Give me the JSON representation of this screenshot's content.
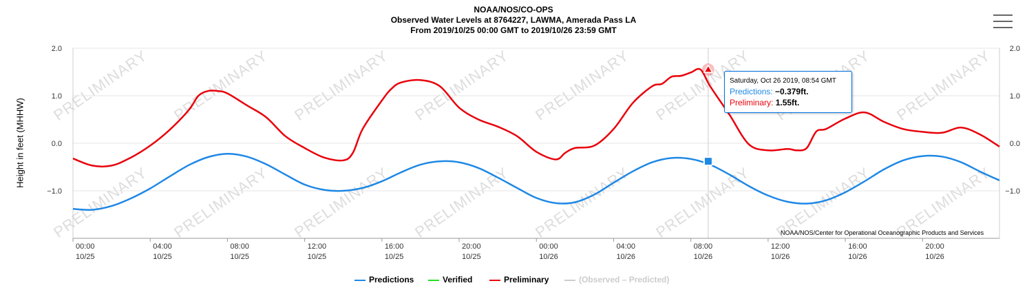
{
  "header": {
    "line1": "NOAA/NOS/CO-OPS",
    "line2": "Observed Water Levels at 8764227, LAWMA, Amerada Pass LA",
    "line3": "From 2019/10/25 00:00 GMT to 2019/10/26 23:59 GMT"
  },
  "menu_icon": "hamburger-menu-icon",
  "watermark_text": "PRELIMINARY",
  "credit": "NOAA/NOS/Center for Operational Oceanographic Products and Services",
  "tooltip": {
    "date": "Saturday, Oct 26 2019, 08:54 GMT",
    "predictions_label": "Predictions:",
    "predictions_value": "−0.379ft.",
    "preliminary_label": "Preliminary:",
    "preliminary_value": "1.55ft."
  },
  "legend": [
    {
      "label": "Predictions",
      "color": "#1e88e5"
    },
    {
      "label": "Verified",
      "color": "#22dd22"
    },
    {
      "label": "Preliminary",
      "color": "#e8000b"
    },
    {
      "label": "(Observed – Predicted)",
      "color": "#cccccc"
    }
  ],
  "chart_data": {
    "type": "line",
    "title": "Observed Water Levels at 8764227, LAWMA, Amerada Pass LA",
    "ylabel": "Height in feet (MHHW)",
    "xlabel": "",
    "ylim": [
      -2.0,
      2.0
    ],
    "xlim": [
      0,
      47.983
    ],
    "x_unit": "hours since 2019/10/25 00:00 GMT",
    "yticks": [
      "2.0",
      "1.0",
      "0.0",
      "−1.0"
    ],
    "ytick_values": [
      2.0,
      1.0,
      0.0,
      -1.0
    ],
    "xtick_hours": [
      0,
      4,
      8,
      12,
      16,
      20,
      24,
      28,
      32,
      36,
      40,
      44
    ],
    "xticks": [
      [
        "00:00",
        "10/25"
      ],
      [
        "04:00",
        "10/25"
      ],
      [
        "08:00",
        "10/25"
      ],
      [
        "12:00",
        "10/25"
      ],
      [
        "16:00",
        "10/25"
      ],
      [
        "20:00",
        "10/25"
      ],
      [
        "00:00",
        "10/26"
      ],
      [
        "04:00",
        "10/26"
      ],
      [
        "08:00",
        "10/26"
      ],
      [
        "12:00",
        "10/26"
      ],
      [
        "16:00",
        "10/26"
      ],
      [
        "20:00",
        "10/26"
      ]
    ],
    "grid": "horizontal",
    "legend_position": "bottom",
    "series": [
      {
        "name": "Predictions",
        "color": "#1e88e5",
        "x": [
          0,
          1,
          2,
          3,
          4,
          5,
          6,
          7,
          8,
          9,
          10,
          11,
          12,
          13,
          14,
          15,
          16,
          17,
          18,
          19,
          20,
          21,
          22,
          23,
          24,
          25,
          26,
          27,
          28,
          29,
          30,
          31,
          32,
          33,
          34,
          35,
          36,
          37,
          38,
          39,
          40,
          41,
          42,
          43,
          44,
          45,
          46,
          47,
          47.98
        ],
        "y": [
          -1.38,
          -1.4,
          -1.32,
          -1.16,
          -0.95,
          -0.7,
          -0.46,
          -0.29,
          -0.22,
          -0.28,
          -0.44,
          -0.66,
          -0.87,
          -0.98,
          -1.0,
          -0.94,
          -0.8,
          -0.61,
          -0.45,
          -0.38,
          -0.4,
          -0.52,
          -0.72,
          -0.94,
          -1.15,
          -1.26,
          -1.24,
          -1.08,
          -0.83,
          -0.59,
          -0.4,
          -0.31,
          -0.33,
          -0.45,
          -0.66,
          -0.9,
          -1.1,
          -1.23,
          -1.27,
          -1.2,
          -1.03,
          -0.8,
          -0.55,
          -0.36,
          -0.27,
          -0.28,
          -0.4,
          -0.6,
          -0.78
        ]
      },
      {
        "name": "Verified",
        "color": "#22dd22",
        "x": [],
        "y": []
      },
      {
        "name": "Preliminary",
        "color": "#e8000b",
        "x": [
          0,
          1,
          2,
          3,
          4,
          5,
          6,
          6.5,
          7,
          7.5,
          8,
          9,
          10,
          11,
          12,
          13,
          14,
          14.5,
          15,
          16,
          16.5,
          17,
          18,
          19,
          20,
          21,
          22,
          23,
          24,
          25,
          25.5,
          26,
          27,
          28,
          29,
          30,
          30.5,
          31,
          31.5,
          32,
          32.5,
          33,
          34,
          35,
          36,
          37,
          37.5,
          38,
          38.5,
          39,
          40,
          41,
          42,
          43,
          44,
          45,
          46,
          47,
          47.98
        ],
        "y": [
          -0.32,
          -0.47,
          -0.47,
          -0.3,
          -0.05,
          0.28,
          0.7,
          1.0,
          1.1,
          1.1,
          1.05,
          0.8,
          0.55,
          0.15,
          -0.1,
          -0.3,
          -0.36,
          -0.2,
          0.3,
          0.9,
          1.15,
          1.28,
          1.33,
          1.2,
          0.75,
          0.5,
          0.35,
          0.15,
          -0.18,
          -0.34,
          -0.2,
          -0.1,
          -0.05,
          0.3,
          0.85,
          1.2,
          1.25,
          1.4,
          1.42,
          1.49,
          1.55,
          1.2,
          0.6,
          -0.02,
          -0.15,
          -0.12,
          -0.15,
          -0.1,
          0.25,
          0.3,
          0.52,
          0.65,
          0.45,
          0.3,
          0.24,
          0.22,
          0.33,
          0.18,
          -0.07
        ]
      },
      {
        "name": "(Observed – Predicted)",
        "color": "#cccccc",
        "x": [],
        "y": []
      }
    ],
    "highlight": {
      "x": 32.9,
      "predictions": -0.379,
      "preliminary": 1.55
    }
  }
}
